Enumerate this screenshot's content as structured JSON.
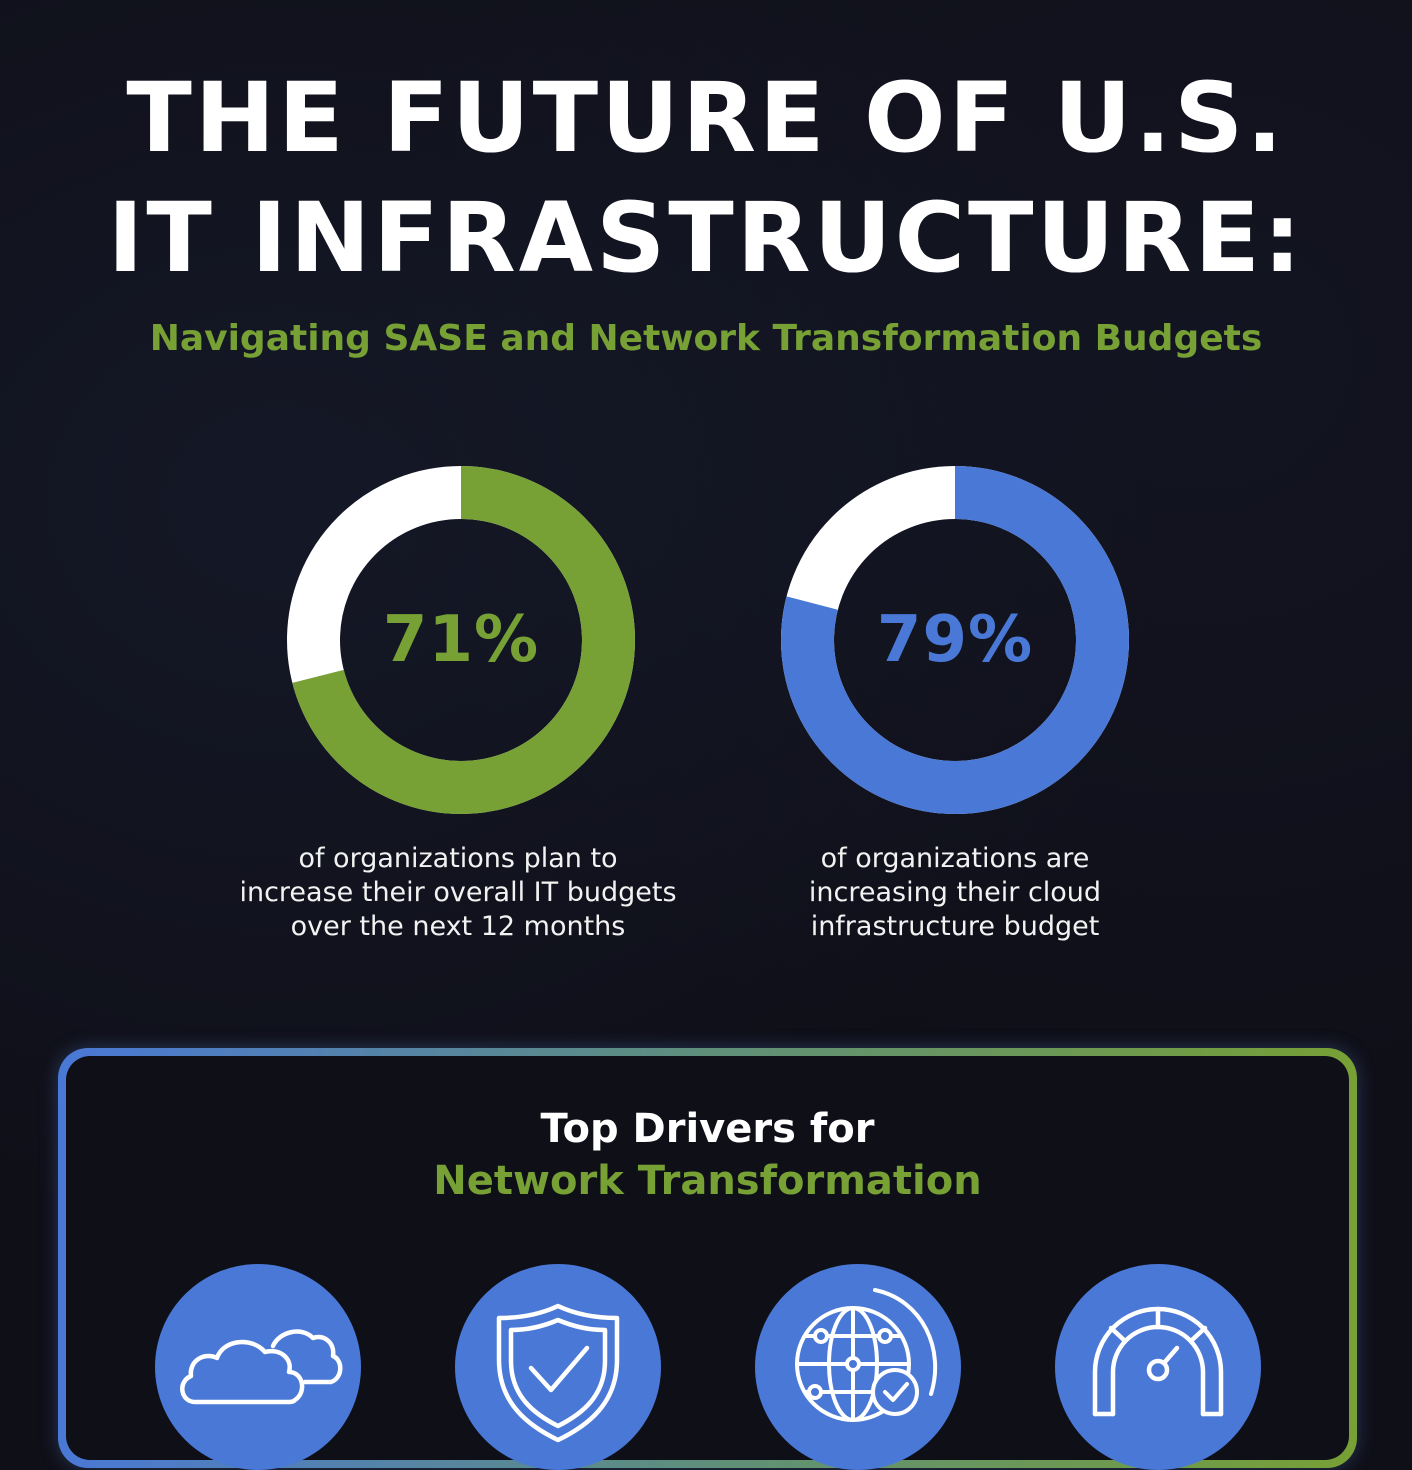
{
  "header": {
    "title_line1": "THE FUTURE OF U.S.",
    "title_line2": "IT INFRASTRUCTURE:",
    "subtitle": "Navigating SASE and Network Transformation Budgets"
  },
  "colors": {
    "background": "#0f0f18",
    "green": "#77a035",
    "blue": "#4a78d6",
    "white": "#ffffff"
  },
  "chart_data": [
    {
      "type": "pie",
      "value": 71,
      "label": "71%",
      "caption_lines": [
        "of organizations plan to",
        "increase their overall IT budgets",
        "over the next 12 months"
      ],
      "color": "#77a035",
      "remainder_color": "#ffffff"
    },
    {
      "type": "pie",
      "value": 79,
      "label": "79%",
      "caption_lines": [
        "of organizations are",
        "increasing their cloud",
        "infrastructure budget"
      ],
      "color": "#4a78d6",
      "remainder_color": "#ffffff"
    }
  ],
  "drivers": {
    "title_line1": "Top Drivers for",
    "title_line2": "Network Transformation",
    "icons": [
      "cloud-icon",
      "shield-check-icon",
      "globe-network-icon",
      "speedometer-icon"
    ]
  }
}
